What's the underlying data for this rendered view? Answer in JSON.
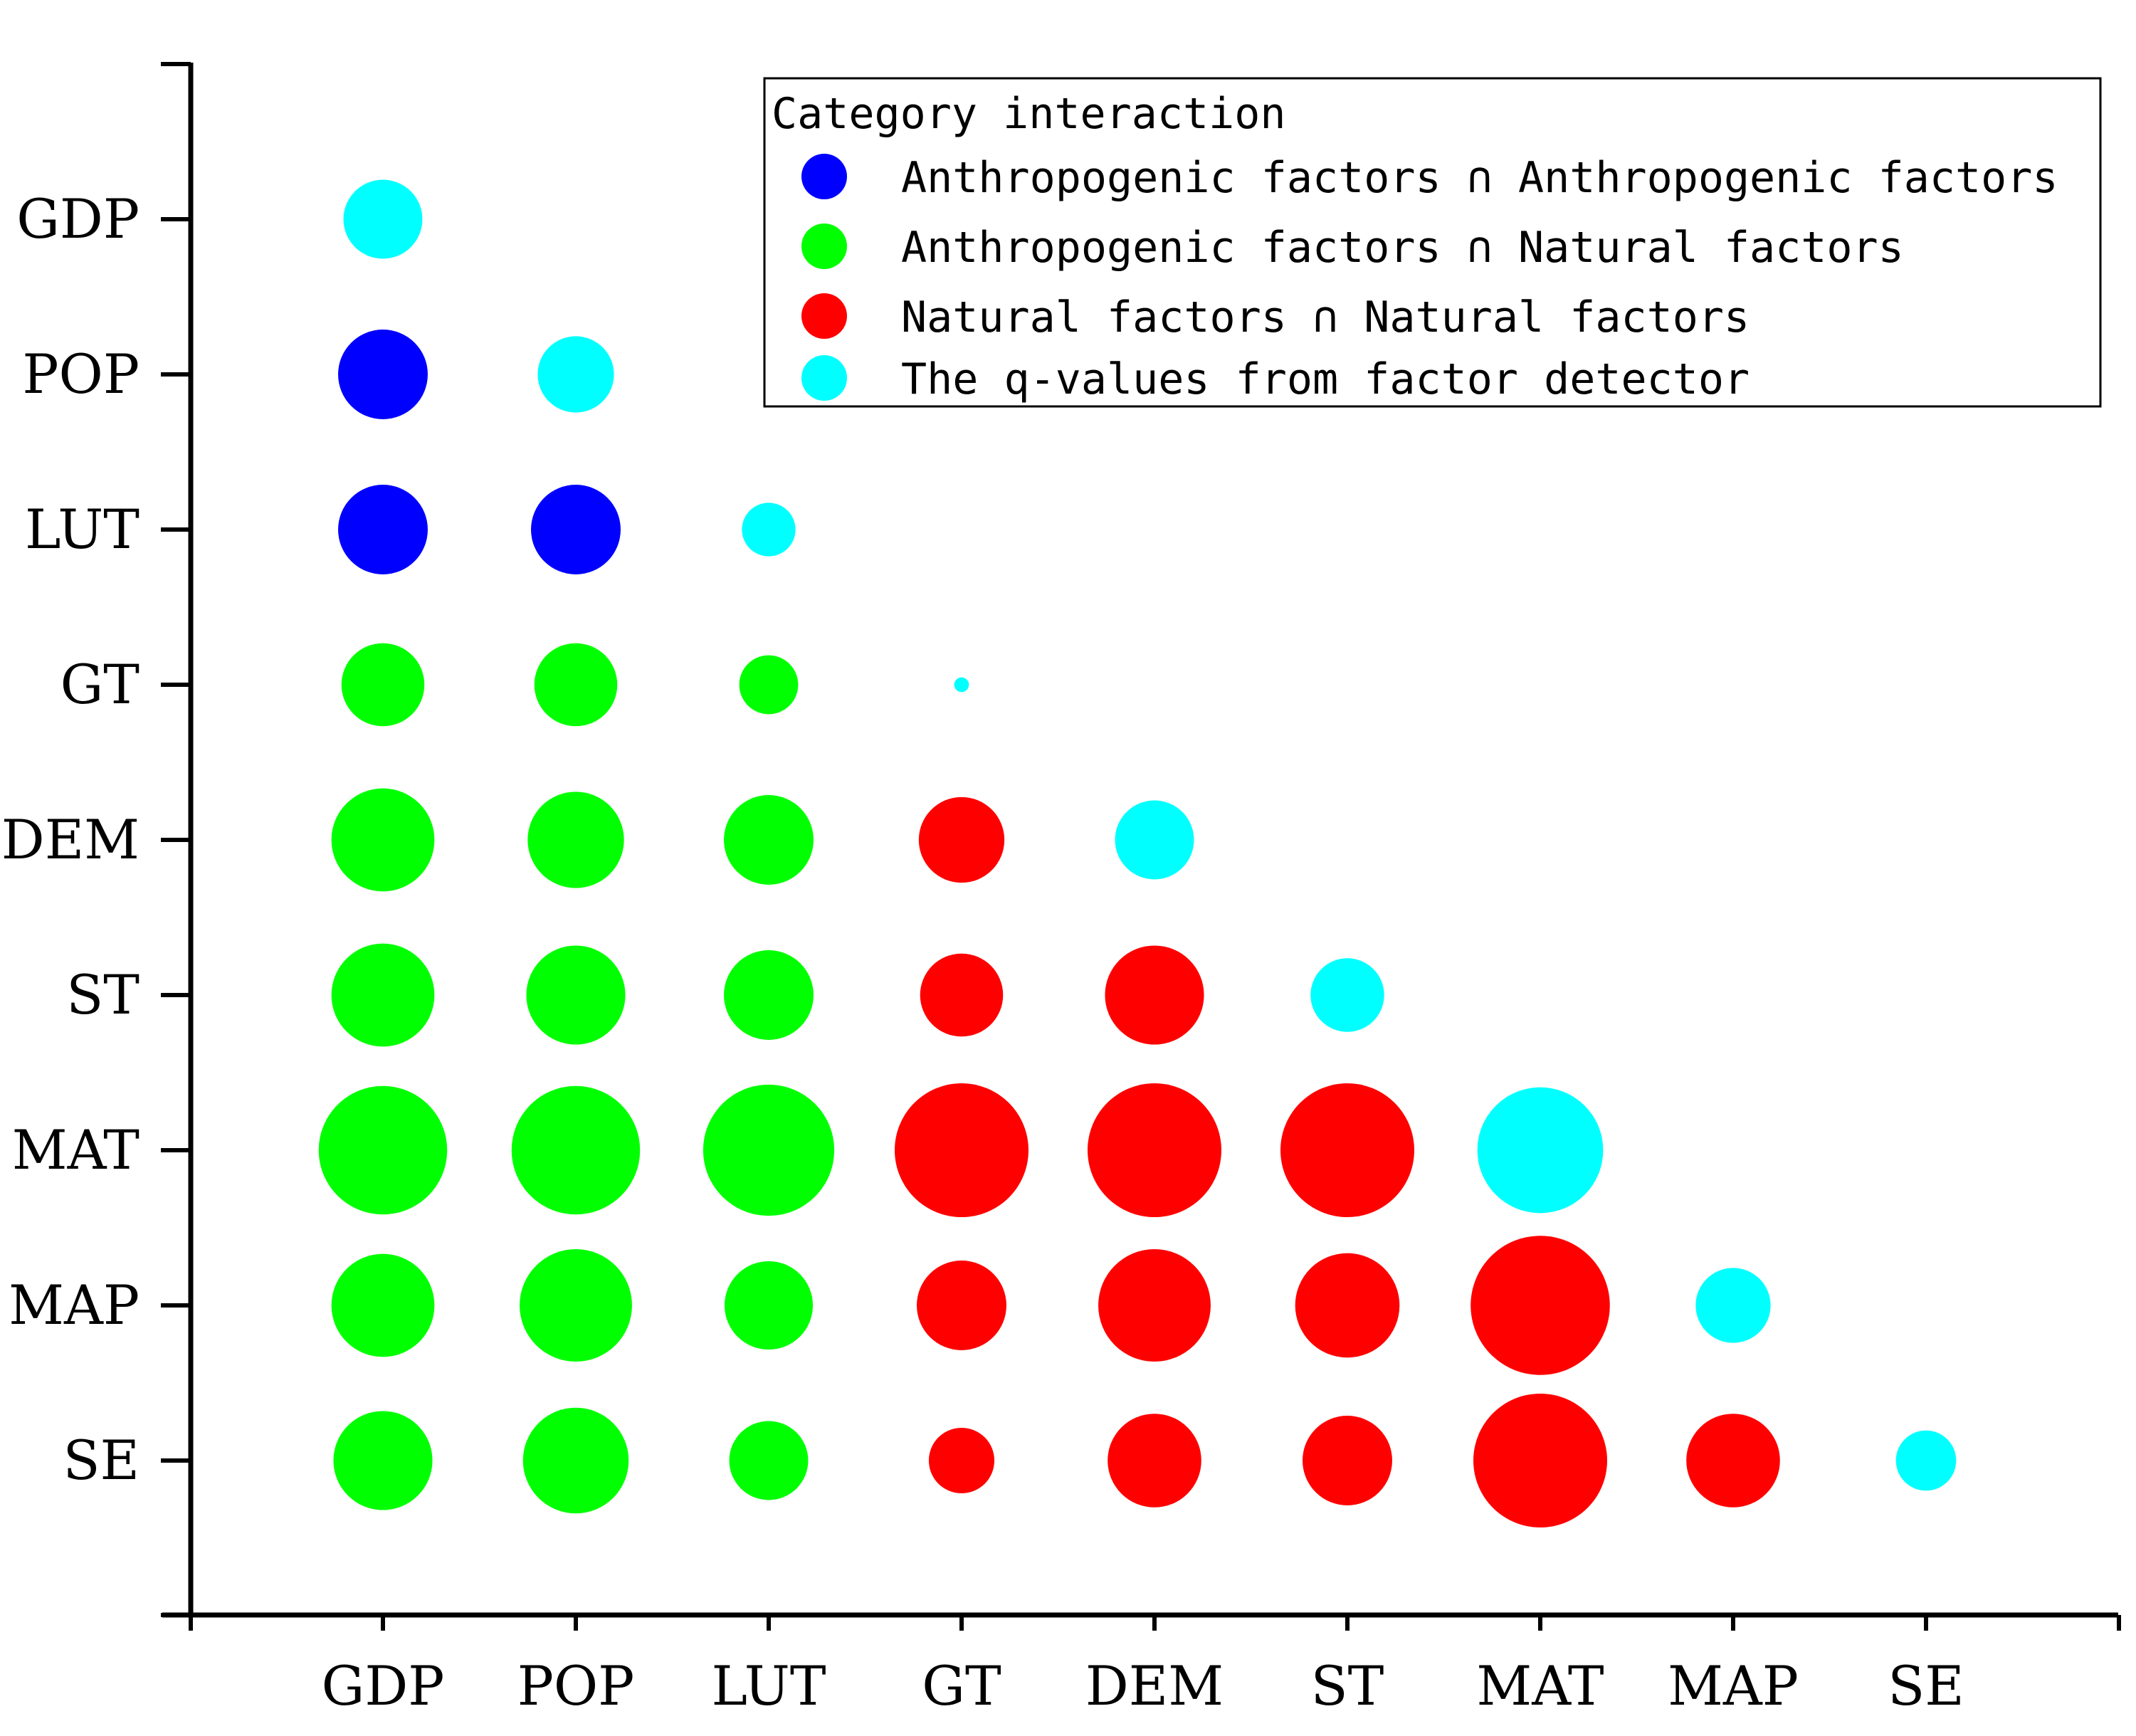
{
  "chart_data": {
    "type": "scatter",
    "subtype": "bubble-matrix",
    "categories": [
      "GDP",
      "POP",
      "LUT",
      "GT",
      "DEM",
      "ST",
      "MAT",
      "MAP",
      "SE"
    ],
    "x_tick_labels": [
      "GDP",
      "POP",
      "LUT",
      "GT",
      "DEM",
      "ST",
      "MAT",
      "MAP",
      "SE"
    ],
    "y_tick_labels": [
      "GDP",
      "POP",
      "LUT",
      "GT",
      "DEM",
      "ST",
      "MAT",
      "MAP",
      "SE"
    ],
    "grid": false,
    "legend": {
      "title": "Category interaction",
      "placement": "top-right",
      "entries": [
        {
          "key": "aa",
          "label": "Anthropogenic factors ∩ Anthropogenic factors",
          "color": "#0000ff"
        },
        {
          "key": "an",
          "label": "Anthropogenic factors ∩ Natural factors",
          "color": "#00ff00"
        },
        {
          "key": "nn",
          "label": "Natural factors ∩ Natural factors",
          "color": "#ff0000"
        },
        {
          "key": "q",
          "label": "The q-values from factor detector",
          "color": "#00ffff"
        }
      ]
    },
    "size_unit": "relative bubble diameter",
    "points": [
      {
        "x": "GDP",
        "y": "GDP",
        "category": "q",
        "size": 0.59
      },
      {
        "x": "GDP",
        "y": "POP",
        "category": "aa",
        "size": 0.67
      },
      {
        "x": "POP",
        "y": "POP",
        "category": "q",
        "size": 0.57
      },
      {
        "x": "GDP",
        "y": "LUT",
        "category": "aa",
        "size": 0.67
      },
      {
        "x": "POP",
        "y": "LUT",
        "category": "aa",
        "size": 0.67
      },
      {
        "x": "LUT",
        "y": "LUT",
        "category": "q",
        "size": 0.4
      },
      {
        "x": "GDP",
        "y": "GT",
        "category": "an",
        "size": 0.62
      },
      {
        "x": "POP",
        "y": "GT",
        "category": "an",
        "size": 0.62
      },
      {
        "x": "LUT",
        "y": "GT",
        "category": "an",
        "size": 0.44
      },
      {
        "x": "GT",
        "y": "GT",
        "category": "q",
        "size": 0.11
      },
      {
        "x": "GDP",
        "y": "DEM",
        "category": "an",
        "size": 0.77
      },
      {
        "x": "POP",
        "y": "DEM",
        "category": "an",
        "size": 0.72
      },
      {
        "x": "LUT",
        "y": "DEM",
        "category": "an",
        "size": 0.67
      },
      {
        "x": "GT",
        "y": "DEM",
        "category": "nn",
        "size": 0.64
      },
      {
        "x": "DEM",
        "y": "DEM",
        "category": "q",
        "size": 0.59
      },
      {
        "x": "GDP",
        "y": "ST",
        "category": "an",
        "size": 0.77
      },
      {
        "x": "POP",
        "y": "ST",
        "category": "an",
        "size": 0.74
      },
      {
        "x": "LUT",
        "y": "ST",
        "category": "an",
        "size": 0.67
      },
      {
        "x": "GT",
        "y": "ST",
        "category": "nn",
        "size": 0.62
      },
      {
        "x": "DEM",
        "y": "ST",
        "category": "nn",
        "size": 0.74
      },
      {
        "x": "ST",
        "y": "ST",
        "category": "q",
        "size": 0.55
      },
      {
        "x": "GDP",
        "y": "MAT",
        "category": "an",
        "size": 0.96
      },
      {
        "x": "POP",
        "y": "MAT",
        "category": "an",
        "size": 0.96
      },
      {
        "x": "LUT",
        "y": "MAT",
        "category": "an",
        "size": 0.98
      },
      {
        "x": "GT",
        "y": "MAT",
        "category": "nn",
        "size": 1.0
      },
      {
        "x": "DEM",
        "y": "MAT",
        "category": "nn",
        "size": 1.0
      },
      {
        "x": "ST",
        "y": "MAT",
        "category": "nn",
        "size": 1.0
      },
      {
        "x": "MAT",
        "y": "MAT",
        "category": "q",
        "size": 0.94
      },
      {
        "x": "GDP",
        "y": "MAP",
        "category": "an",
        "size": 0.77
      },
      {
        "x": "POP",
        "y": "MAP",
        "category": "an",
        "size": 0.84
      },
      {
        "x": "LUT",
        "y": "MAP",
        "category": "an",
        "size": 0.66
      },
      {
        "x": "GT",
        "y": "MAP",
        "category": "nn",
        "size": 0.67
      },
      {
        "x": "DEM",
        "y": "MAP",
        "category": "nn",
        "size": 0.84
      },
      {
        "x": "ST",
        "y": "MAP",
        "category": "nn",
        "size": 0.78
      },
      {
        "x": "MAT",
        "y": "MAP",
        "category": "nn",
        "size": 1.04
      },
      {
        "x": "MAP",
        "y": "MAP",
        "category": "q",
        "size": 0.56
      },
      {
        "x": "GDP",
        "y": "SE",
        "category": "an",
        "size": 0.74
      },
      {
        "x": "POP",
        "y": "SE",
        "category": "an",
        "size": 0.79
      },
      {
        "x": "LUT",
        "y": "SE",
        "category": "an",
        "size": 0.59
      },
      {
        "x": "GT",
        "y": "SE",
        "category": "nn",
        "size": 0.49
      },
      {
        "x": "DEM",
        "y": "SE",
        "category": "nn",
        "size": 0.7
      },
      {
        "x": "ST",
        "y": "SE",
        "category": "nn",
        "size": 0.67
      },
      {
        "x": "MAT",
        "y": "SE",
        "category": "nn",
        "size": 1.0
      },
      {
        "x": "MAP",
        "y": "SE",
        "category": "nn",
        "size": 0.7
      },
      {
        "x": "SE",
        "y": "SE",
        "category": "q",
        "size": 0.45
      }
    ]
  }
}
